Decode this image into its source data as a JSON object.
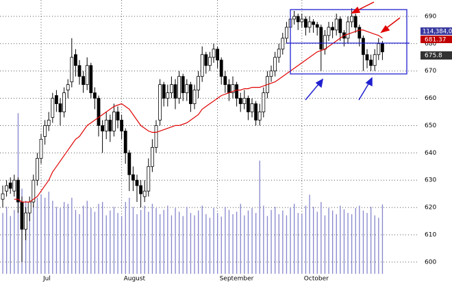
{
  "chart_data": {
    "type": "candlestick",
    "categories": [
      null,
      null,
      null,
      null,
      null,
      null,
      null,
      null,
      null,
      null,
      "Jul",
      null,
      null,
      null,
      null,
      null,
      null,
      null,
      null,
      null,
      null,
      null,
      null,
      null,
      null,
      null,
      null,
      null,
      null,
      null,
      null,
      "August",
      null,
      null,
      null,
      null,
      null,
      null,
      null,
      null,
      null,
      null,
      null,
      null,
      null,
      null,
      null,
      null,
      null,
      null,
      null,
      null,
      null,
      null,
      null,
      null,
      "September",
      null,
      null,
      null,
      null,
      null,
      null,
      null,
      null,
      null,
      null,
      null,
      null,
      null,
      null,
      null,
      null,
      null,
      null,
      null,
      null,
      null,
      "October",
      null,
      null,
      null,
      null,
      null,
      null,
      null,
      null,
      null,
      null,
      null,
      null,
      null,
      null,
      null,
      null,
      null,
      null,
      null,
      null,
      null
    ],
    "open": [
      623,
      626,
      629,
      626,
      630,
      622,
      612,
      618,
      622,
      630,
      638,
      646,
      650,
      653,
      661,
      658,
      655,
      663,
      666,
      676,
      672,
      668,
      665,
      672,
      662,
      660,
      650,
      648,
      652,
      648,
      655,
      652,
      648,
      640,
      632,
      630,
      628,
      624,
      626,
      635,
      642,
      652,
      665,
      660,
      662,
      665,
      660,
      668,
      662,
      665,
      658,
      663,
      668,
      676,
      672,
      675,
      678,
      674,
      668,
      665,
      662,
      665,
      660,
      658,
      660,
      655,
      658,
      652,
      655,
      662,
      668,
      670,
      675,
      678,
      682,
      686,
      689,
      690,
      688,
      689,
      686,
      688,
      687,
      686,
      678,
      683,
      686,
      685,
      689,
      684,
      682,
      688,
      690,
      686,
      682,
      676,
      674,
      672,
      676,
      680
    ],
    "high": [
      628,
      630,
      631,
      632,
      631,
      624,
      620,
      624,
      632,
      640,
      647,
      652,
      655,
      662,
      663,
      660,
      664,
      667,
      682,
      678,
      674,
      670,
      675,
      673,
      664,
      661,
      652,
      655,
      654,
      658,
      657,
      654,
      649,
      641,
      635,
      632,
      630,
      630,
      638,
      645,
      652,
      667,
      666,
      665,
      668,
      667,
      670,
      669,
      667,
      666,
      665,
      670,
      679,
      677,
      677,
      680,
      679,
      675,
      670,
      667,
      668,
      666,
      662,
      663,
      661,
      660,
      659,
      658,
      664,
      670,
      672,
      677,
      680,
      684,
      688,
      691,
      692,
      691,
      691,
      690,
      690,
      689,
      688,
      687,
      685,
      688,
      688,
      691,
      690,
      685,
      690,
      693,
      691,
      687,
      683,
      678,
      676,
      678,
      682,
      681
    ],
    "low": [
      620,
      624,
      625,
      624,
      618,
      600,
      608,
      615,
      620,
      628,
      636,
      643,
      648,
      651,
      655,
      650,
      653,
      660,
      664,
      668,
      665,
      662,
      663,
      660,
      656,
      646,
      640,
      645,
      644,
      646,
      649,
      645,
      636,
      626,
      626,
      622,
      620,
      622,
      624,
      633,
      640,
      650,
      657,
      657,
      660,
      656,
      658,
      659,
      659,
      655,
      656,
      660,
      666,
      669,
      670,
      673,
      671,
      665,
      662,
      659,
      660,
      657,
      655,
      656,
      652,
      653,
      650,
      650,
      653,
      660,
      666,
      668,
      673,
      676,
      680,
      684,
      687,
      685,
      686,
      683,
      684,
      684,
      683,
      670,
      676,
      681,
      682,
      683,
      681,
      679,
      680,
      686,
      684,
      679,
      670,
      671,
      670,
      670,
      674,
      674
    ],
    "close": [
      625,
      628,
      627,
      630,
      622,
      612,
      618,
      622,
      630,
      638,
      645,
      650,
      652,
      660,
      658,
      655,
      662,
      665,
      675,
      672,
      668,
      665,
      672,
      662,
      660,
      650,
      648,
      652,
      648,
      655,
      652,
      648,
      640,
      632,
      630,
      628,
      625,
      626,
      635,
      642,
      650,
      665,
      660,
      662,
      665,
      660,
      668,
      662,
      665,
      658,
      663,
      668,
      676,
      672,
      675,
      678,
      674,
      668,
      665,
      662,
      665,
      660,
      658,
      660,
      655,
      658,
      652,
      655,
      662,
      668,
      670,
      675,
      678,
      682,
      686,
      689,
      690,
      688,
      689,
      686,
      688,
      687,
      686,
      678,
      683,
      686,
      685,
      689,
      684,
      682,
      688,
      690,
      686,
      682,
      676,
      674,
      672,
      676,
      680,
      677
    ],
    "ma": [
      null,
      null,
      null,
      623,
      623,
      622,
      622,
      622,
      623,
      624,
      626,
      628,
      630,
      633,
      635,
      637,
      639,
      641,
      643,
      645,
      646,
      648,
      650,
      651,
      652,
      653,
      654,
      655,
      656,
      657,
      657.5,
      658,
      657,
      656,
      654,
      652,
      650,
      649,
      648,
      647.5,
      647.5,
      648,
      648.5,
      649,
      649.5,
      650,
      650,
      650.5,
      651,
      652,
      653,
      654,
      656,
      657,
      658,
      659,
      660,
      661,
      661.5,
      662,
      662.5,
      663,
      663,
      663.5,
      663.5,
      664,
      664,
      664,
      664.5,
      665,
      665.5,
      666,
      667,
      668,
      669,
      670,
      671,
      672,
      673,
      674,
      675,
      676,
      677,
      677.5,
      678,
      679,
      680,
      681,
      682,
      683,
      683.5,
      684,
      684.5,
      685,
      685,
      684.5,
      684,
      683.5,
      683,
      682
    ],
    "volume": [
      100,
      110,
      95,
      105,
      264,
      140,
      120,
      118,
      112,
      125,
      130,
      125,
      135,
      120,
      110,
      108,
      118,
      115,
      125,
      105,
      98,
      112,
      120,
      108,
      102,
      115,
      118,
      96,
      104,
      110,
      100,
      95,
      118,
      125,
      110,
      98,
      105,
      112,
      102,
      115,
      108,
      98,
      105,
      112,
      96,
      108,
      102,
      95,
      110,
      100,
      96,
      104,
      112,
      98,
      92,
      108,
      100,
      94,
      110,
      105,
      98,
      102,
      115,
      96,
      104,
      108,
      100,
      186,
      112,
      95,
      105,
      110,
      98,
      104,
      96,
      108,
      115,
      100,
      98,
      112,
      130,
      110,
      102,
      118,
      96,
      108,
      104,
      98,
      112,
      106,
      100,
      98,
      108,
      112,
      104,
      100,
      110,
      96,
      92,
      114
    ],
    "ylim": [
      595.7,
      696
    ],
    "yticks": [
      600,
      610,
      620,
      630,
      640,
      650,
      660,
      670,
      680,
      690
    ],
    "y2lim": [
      0,
      450
    ],
    "grid": true,
    "badges": [
      "114,384,0",
      "681.37",
      "675.8"
    ]
  }
}
